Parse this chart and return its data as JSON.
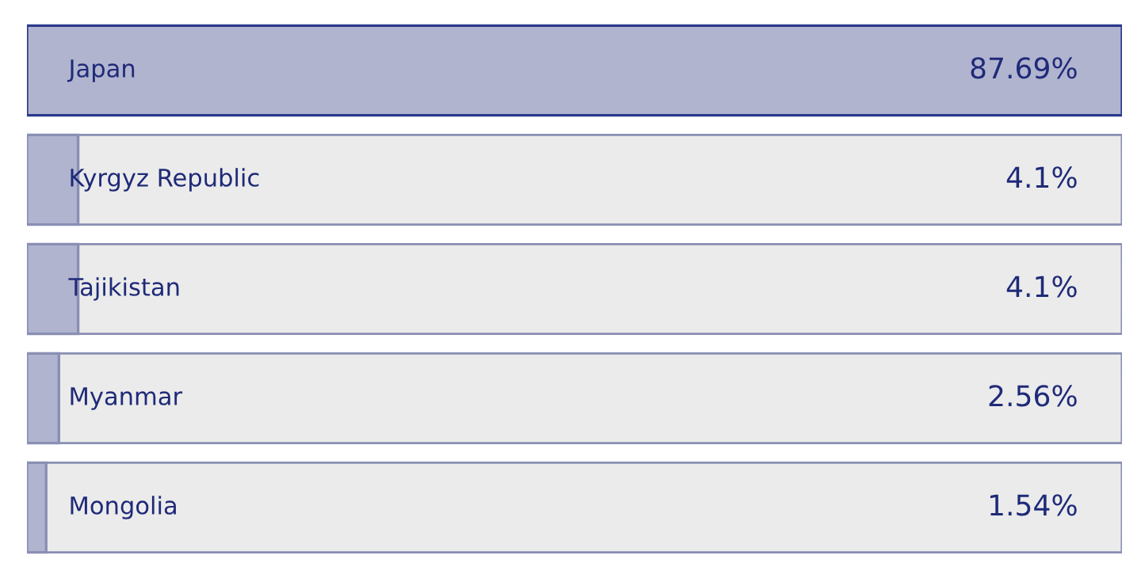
{
  "chart_data": {
    "type": "bar",
    "orientation": "horizontal",
    "categories": [
      "Japan",
      "Kyrgyz Republic",
      "Tajikistan",
      "Myanmar",
      "Mongolia"
    ],
    "values": [
      87.69,
      4.1,
      4.1,
      2.56,
      1.54
    ],
    "value_labels": [
      "87.69%",
      "4.1%",
      "4.1%",
      "2.56%",
      "1.54%"
    ],
    "color": "#b0b4cf",
    "tick_labels": false
  }
}
